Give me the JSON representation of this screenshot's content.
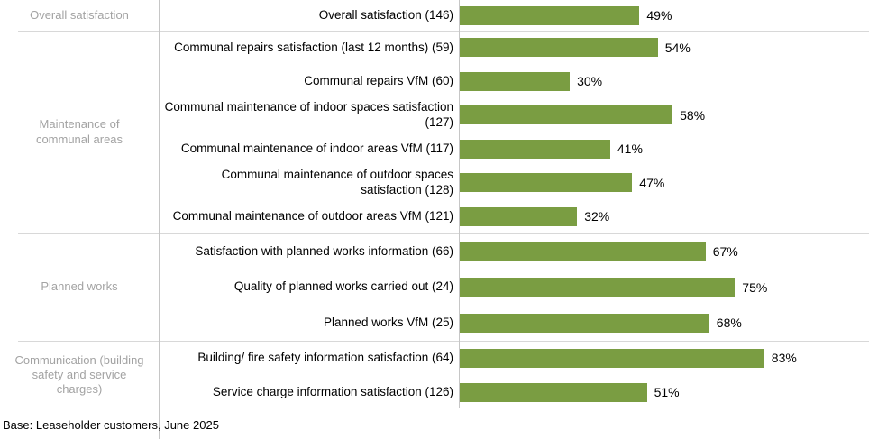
{
  "chart_data": {
    "type": "bar",
    "orientation": "horizontal",
    "bar_color": "#7A9D42",
    "value_suffix": "%",
    "xlim": [
      0,
      100
    ],
    "legend": "none",
    "grid": "off",
    "groups": [
      {
        "label": "Overall satisfaction",
        "items": [
          {
            "label": "Overall satisfaction (146)",
            "value": 49,
            "value_label": "49%"
          }
        ]
      },
      {
        "label": "Maintenance of communal areas",
        "items": [
          {
            "label": "Communal repairs satisfaction (last 12 months) (59)",
            "value": 54,
            "value_label": "54%"
          },
          {
            "label": "Communal repairs VfM (60)",
            "value": 30,
            "value_label": "30%"
          },
          {
            "label": "Communal maintenance of indoor spaces satisfaction (127)",
            "value": 58,
            "value_label": "58%"
          },
          {
            "label": "Communal maintenance of indoor areas VfM (117)",
            "value": 41,
            "value_label": "41%"
          },
          {
            "label": "Communal maintenance of outdoor spaces satisfaction (128)",
            "value": 47,
            "value_label": "47%"
          },
          {
            "label": "Communal maintenance of outdoor areas VfM (121)",
            "value": 32,
            "value_label": "32%"
          }
        ]
      },
      {
        "label": "Planned works",
        "items": [
          {
            "label": "Satisfaction with planned works information (66)",
            "value": 67,
            "value_label": "67%"
          },
          {
            "label": "Quality of planned works carried out (24)",
            "value": 75,
            "value_label": "75%"
          },
          {
            "label": "Planned works VfM (25)",
            "value": 68,
            "value_label": "68%"
          }
        ]
      },
      {
        "label": "Communication (building safety and service charges)",
        "items": [
          {
            "label": "Building/ fire safety information satisfaction (64)",
            "value": 83,
            "value_label": "83%"
          },
          {
            "label": "Service charge information satisfaction (126)",
            "value": 51,
            "value_label": "51%"
          }
        ]
      }
    ],
    "footnote": "Base: Leaseholder customers, June 2025"
  }
}
